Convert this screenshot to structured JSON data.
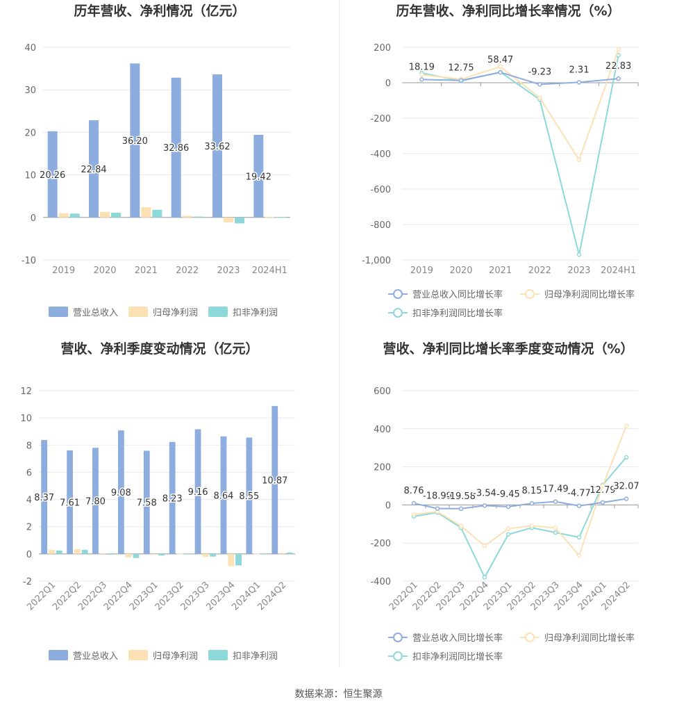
{
  "source": "数据来源：恒生聚源",
  "chart_data": [
    {
      "type": "bar",
      "title": "历年营收、净利情况（亿元）",
      "categories": [
        "2019",
        "2020",
        "2021",
        "2022",
        "2023",
        "2024H1"
      ],
      "ylim": [
        -10,
        40
      ],
      "yticks": [
        40,
        30,
        20,
        10,
        0,
        -10
      ],
      "series": [
        {
          "name": "营业总收入",
          "color": "#8dadde",
          "values": [
            20.26,
            22.84,
            36.2,
            32.86,
            33.62,
            19.42
          ]
        },
        {
          "name": "归母净利润",
          "color": "#fce1b4",
          "values": [
            1.0,
            1.3,
            2.4,
            0.4,
            -1.2,
            0.15
          ]
        },
        {
          "name": "扣非净利润",
          "color": "#8dd8d8",
          "values": [
            0.9,
            1.1,
            1.8,
            0.2,
            -1.4,
            0.1
          ]
        }
      ],
      "data_labels": [
        "20.26",
        "22.84",
        "36.20",
        "32.86",
        "33.62",
        "19.42"
      ],
      "legend": "bottom"
    },
    {
      "type": "line",
      "title": "历年营收、净利同比增长率情况（%）",
      "categories": [
        "2019",
        "2020",
        "2021",
        "2022",
        "2023",
        "2024H1"
      ],
      "ylim": [
        -1000,
        200
      ],
      "yticks": [
        "200",
        "0",
        "-200",
        "-400",
        "-600",
        "-800",
        "-1,000"
      ],
      "ytick_values": [
        200,
        0,
        -200,
        -400,
        -600,
        -800,
        -1000
      ],
      "series": [
        {
          "name": "营业总收入同比增长率",
          "color": "#8dadde",
          "values": [
            18.19,
            12.75,
            58.47,
            -9.23,
            2.31,
            22.83
          ]
        },
        {
          "name": "归母净利润同比增长率",
          "color": "#fce1b4",
          "values": [
            45,
            20,
            90,
            -85,
            -435,
            188
          ]
        },
        {
          "name": "扣非净利润同比增长率",
          "color": "#8dd8d8",
          "values": [
            55,
            10,
            60,
            -95,
            -970,
            155
          ]
        }
      ],
      "data_labels": [
        "18.19",
        "12.75",
        "58.47",
        "-9.23",
        "2.31",
        "22.83"
      ],
      "legend": "bottom"
    },
    {
      "type": "bar",
      "title": "营收、净利季度变动情况（亿元）",
      "categories": [
        "2022Q1",
        "2022Q2",
        "2022Q3",
        "2022Q4",
        "2023Q1",
        "2023Q2",
        "2023Q3",
        "2023Q4",
        "2024Q1",
        "2024Q2"
      ],
      "ylim": [
        -2,
        12
      ],
      "yticks": [
        12,
        10,
        8,
        6,
        4,
        2,
        0,
        -2
      ],
      "series": [
        {
          "name": "营业总收入",
          "color": "#8dadde",
          "values": [
            8.37,
            7.61,
            7.8,
            9.08,
            7.58,
            8.23,
            9.16,
            8.64,
            8.55,
            10.87
          ]
        },
        {
          "name": "归母净利润",
          "color": "#fce1b4",
          "values": [
            0.3,
            0.35,
            0.05,
            -0.25,
            -0.05,
            0.02,
            -0.22,
            -0.9,
            0.02,
            0.07
          ]
        },
        {
          "name": "扣非净利润",
          "color": "#8dd8d8",
          "values": [
            0.25,
            0.3,
            -0.04,
            -0.3,
            -0.12,
            0.01,
            -0.2,
            -0.85,
            0.01,
            0.1
          ]
        }
      ],
      "data_labels": [
        "8.37",
        "7.61",
        "7.80",
        "9.08",
        "7.58",
        "8.23",
        "9.16",
        "8.64",
        "8.55",
        "10.87"
      ],
      "legend": "bottom"
    },
    {
      "type": "line",
      "title": "营收、净利同比增长率季度变动情况（%）",
      "categories": [
        "2022Q1",
        "2022Q2",
        "2022Q3",
        "2022Q4",
        "2023Q1",
        "2023Q2",
        "2023Q3",
        "2023Q4",
        "2024Q1",
        "2024Q2"
      ],
      "ylim": [
        -400,
        600
      ],
      "yticks": [
        "600",
        "400",
        "200",
        "0",
        "-200",
        "-400"
      ],
      "ytick_values": [
        600,
        400,
        200,
        0,
        -200,
        -400
      ],
      "series": [
        {
          "name": "营业总收入同比增长率",
          "color": "#8dadde",
          "values": [
            8.76,
            -18.99,
            -19.58,
            -3.54,
            -9.45,
            8.15,
            17.49,
            -4.77,
            12.79,
            32.07
          ]
        },
        {
          "name": "归母净利润同比增长率",
          "color": "#fce1b4",
          "values": [
            -50,
            -35,
            -110,
            -215,
            -125,
            -110,
            -120,
            -265,
            100,
            415
          ]
        },
        {
          "name": "扣非净利润同比增长率",
          "color": "#8dd8d8",
          "values": [
            -60,
            -40,
            -120,
            -380,
            -155,
            -120,
            -145,
            -170,
            105,
            250
          ]
        }
      ],
      "data_labels": [
        "8.76",
        "-18.99",
        "-19.58",
        "-3.54",
        "-9.45",
        "8.15",
        "17.49",
        "-4.77",
        "12.79",
        "32.07"
      ],
      "legend": "bottom"
    }
  ]
}
